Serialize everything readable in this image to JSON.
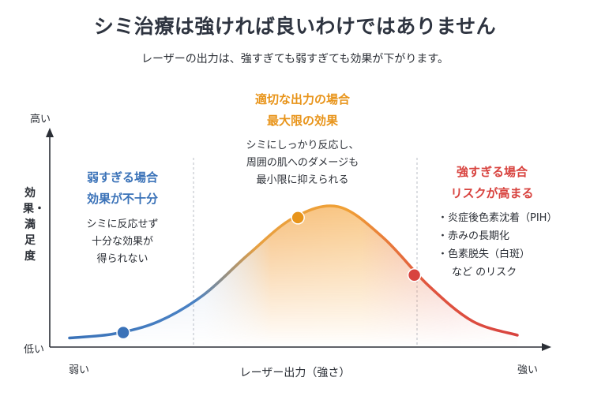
{
  "title": "シミ治療は強ければ良いわけではありません",
  "subtitle": "レーザーの出力は、強すぎても弱すぎても効果が下がります。",
  "axes": {
    "y_high": "高い",
    "y_low": "低い",
    "y_label": "効果・満足度",
    "x_low": "弱い",
    "x_high": "強い",
    "x_label": "レーザー出力（強さ）"
  },
  "zones": {
    "weak": {
      "heading": [
        "弱すぎる場合",
        "効果が不十分"
      ],
      "body": [
        "シミに反応せず",
        "十分な効果が",
        "得られない"
      ],
      "color": "#3a72b8"
    },
    "optimal": {
      "heading": [
        "適切な出力の場合",
        "最大限の効果"
      ],
      "body": [
        "シミにしっかり反応し、",
        "周囲の肌へのダメージも",
        "最小限に抑えられる"
      ],
      "color": "#e8941a"
    },
    "strong": {
      "heading": [
        "強すぎる場合",
        "リスクが高まる"
      ],
      "bullets": [
        "・炎症後色素沈着（PIH）",
        "・赤みの長期化",
        "・色素脱失（白斑）"
      ],
      "tail": "など のリスク",
      "color": "#d8433f"
    }
  },
  "chart_data": {
    "type": "line",
    "curve": "bell",
    "series": [
      {
        "x": [
          0,
          0.1,
          0.2,
          0.3,
          0.4,
          0.5,
          0.6,
          0.7,
          0.8,
          0.9,
          1.0
        ],
        "y": [
          0.02,
          0.05,
          0.14,
          0.33,
          0.62,
          0.88,
          0.96,
          0.74,
          0.4,
          0.14,
          0.04
        ]
      }
    ],
    "markers": [
      {
        "label": "weak",
        "x": 0.12,
        "color": "#3a72b8"
      },
      {
        "label": "optimal",
        "x": 0.51,
        "color": "#e8941a"
      },
      {
        "label": "strong",
        "x": 0.77,
        "color": "#d8433f"
      }
    ],
    "dividers": [
      "weak|optimal",
      "optimal|strong"
    ],
    "colors": {
      "blue": "#3a72b8",
      "orange": "#f0a035",
      "red": "#d8433f"
    }
  }
}
